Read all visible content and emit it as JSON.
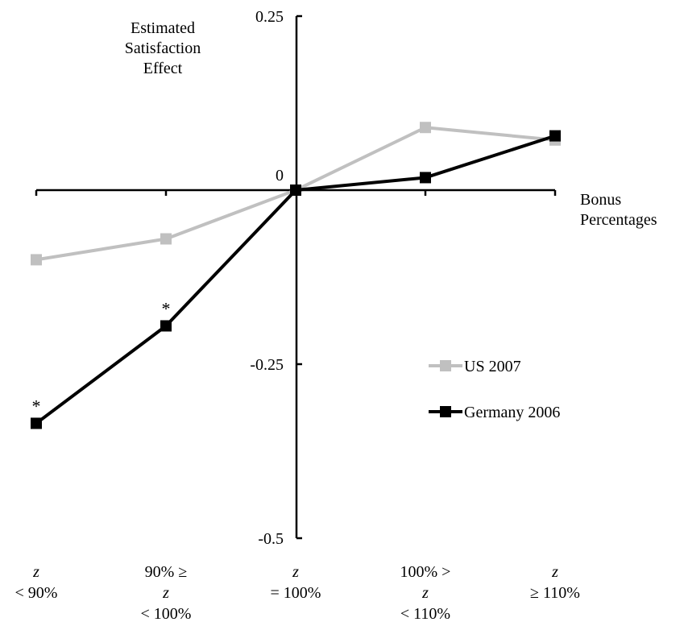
{
  "chart_data": {
    "type": "line",
    "ylabel": [
      "Estimated",
      "Satisfaction",
      "Effect"
    ],
    "xlabel": [
      "Bonus",
      "Percentages"
    ],
    "ylim": [
      -0.5,
      0.25
    ],
    "yticks": [
      {
        "value": 0.25,
        "label": "0.25"
      },
      {
        "value": 0,
        "label": "0"
      },
      {
        "value": -0.25,
        "label": "-0.25"
      },
      {
        "value": -0.5,
        "label": "-0.5"
      }
    ],
    "categories": [
      [
        {
          "t": "z",
          "italic": true
        },
        {
          "t": "< 90%",
          "italic": false
        }
      ],
      [
        {
          "t": "90% ≥",
          "italic": false
        },
        {
          "t": "z",
          "italic": true
        },
        {
          "t": "< 100%",
          "italic": false
        }
      ],
      [
        {
          "t": "z",
          "italic": true
        },
        {
          "t": "= 100%",
          "italic": false
        }
      ],
      [
        {
          "t": "100% >",
          "italic": false
        },
        {
          "t": "z",
          "italic": true
        },
        {
          "t": "< 110%",
          "italic": false
        }
      ],
      [
        {
          "t": "z",
          "italic": true
        },
        {
          "t": "≥ 110%",
          "italic": false
        }
      ]
    ],
    "series": [
      {
        "name": "US 2007",
        "color": "#c0c0c0",
        "values": [
          -0.1,
          -0.07,
          0,
          0.09,
          0.072
        ]
      },
      {
        "name": "Germany 2006",
        "color": "#000000",
        "values": [
          -0.335,
          -0.195,
          0,
          0.018,
          0.078
        ]
      }
    ],
    "annotations": [
      {
        "series": 1,
        "index": 0,
        "text": "*"
      },
      {
        "series": 1,
        "index": 1,
        "text": "*"
      }
    ],
    "legend_position": "right"
  }
}
